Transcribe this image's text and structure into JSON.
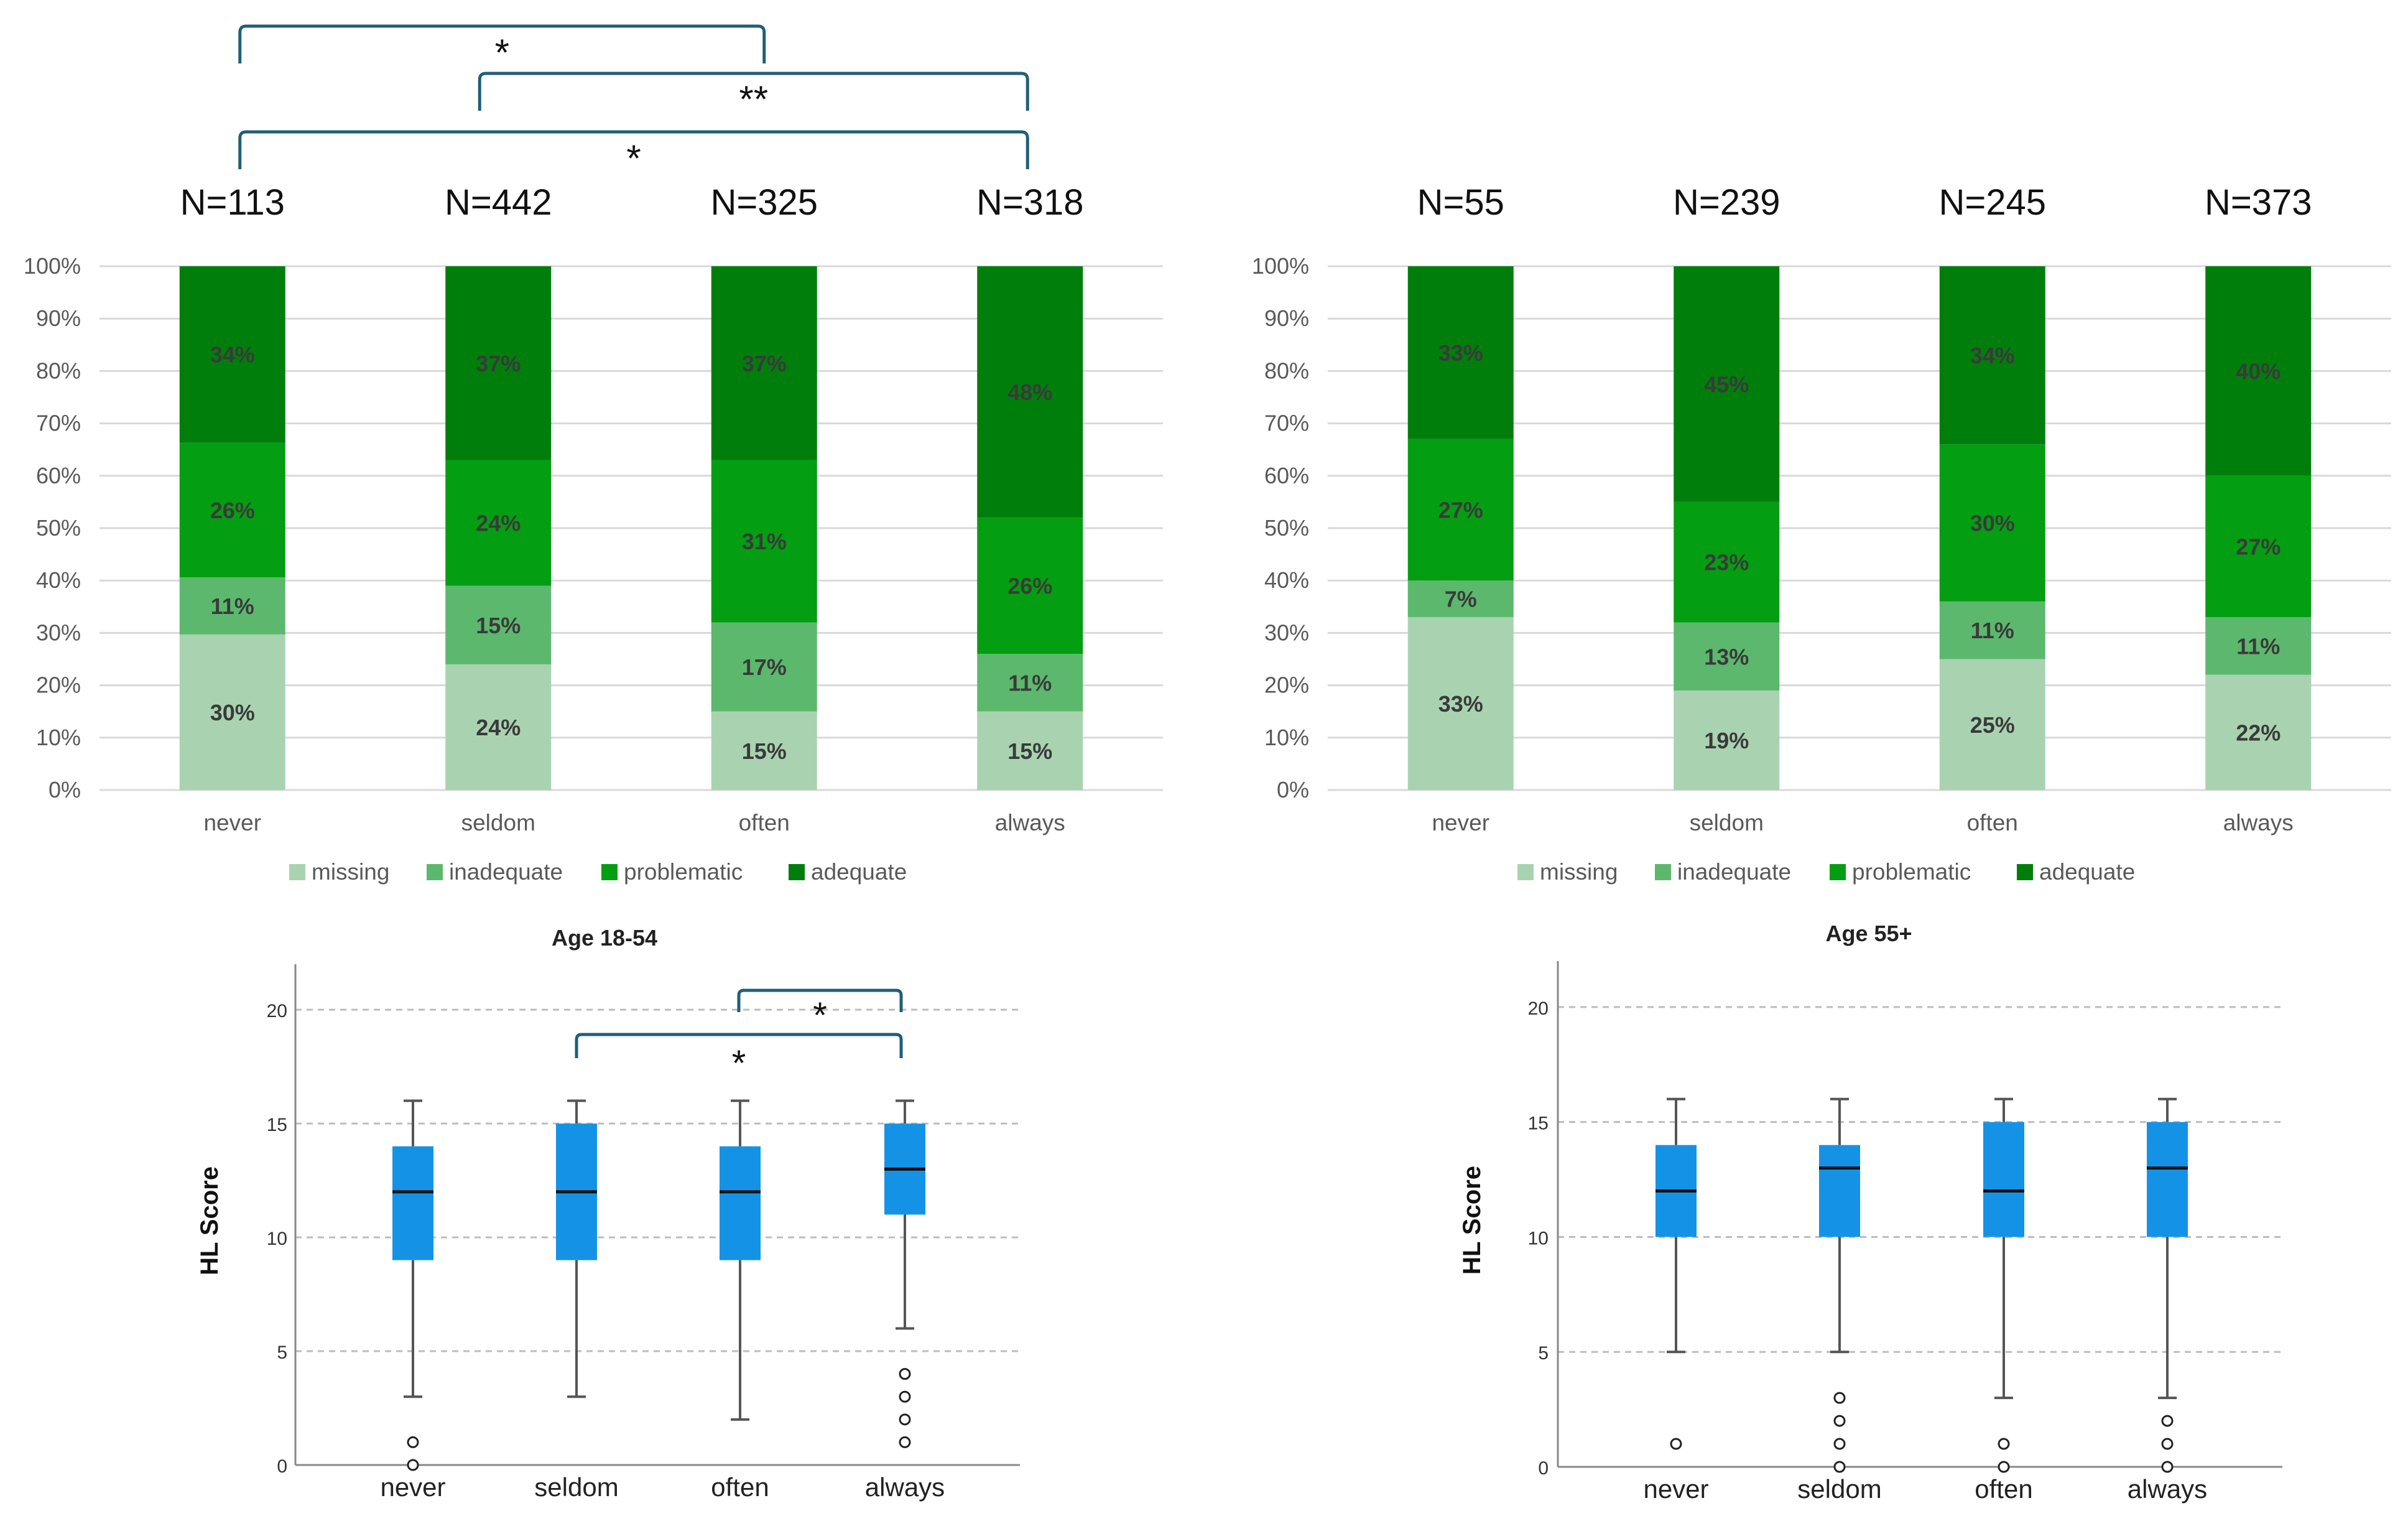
{
  "colors": {
    "missing": "#a9d3b0",
    "inadequate": "#5cb86d",
    "problematic": "#039e11",
    "adequate": "#007e0c",
    "box_fill": "#1493e6",
    "bracket": "#1f5f7a",
    "grid": "#d9d9d9",
    "tick_text": "#595959",
    "label_text": "#3a3a3a"
  },
  "chart_data": [
    {
      "id": "stacked-left",
      "type": "bar",
      "stacked": true,
      "percent_axis": true,
      "categories": [
        "never",
        "seldom",
        "often",
        "always"
      ],
      "n_labels": [
        "N=113",
        "N=442",
        "N=325",
        "N=318"
      ],
      "yticks": [
        "0%",
        "10%",
        "20%",
        "30%",
        "40%",
        "50%",
        "60%",
        "70%",
        "80%",
        "90%",
        "100%"
      ],
      "ylim": [
        0,
        100
      ],
      "series": [
        {
          "name": "missing",
          "values": [
            30,
            24,
            15,
            15
          ],
          "labels": [
            "30%",
            "24%",
            "15%",
            "15%"
          ]
        },
        {
          "name": "inadequate",
          "values": [
            11,
            15,
            17,
            11
          ],
          "labels": [
            "11%",
            "15%",
            "17%",
            "11%"
          ]
        },
        {
          "name": "problematic",
          "values": [
            26,
            24,
            31,
            26
          ],
          "labels": [
            "26%",
            "24%",
            "31%",
            "26%"
          ]
        },
        {
          "name": "adequate",
          "values": [
            34,
            37,
            37,
            48
          ],
          "labels": [
            "34%",
            "37%",
            "37%",
            "48%"
          ]
        }
      ],
      "legend": [
        "missing",
        "inadequate",
        "problematic",
        "adequate"
      ],
      "legend_position": "bottom",
      "significance": [
        {
          "from": "never",
          "to": "often",
          "label": "*"
        },
        {
          "from": "seldom",
          "to": "always",
          "label": "**"
        },
        {
          "from": "never",
          "to": "always",
          "label": "*"
        }
      ]
    },
    {
      "id": "stacked-right",
      "type": "bar",
      "stacked": true,
      "percent_axis": true,
      "categories": [
        "never",
        "seldom",
        "often",
        "always"
      ],
      "n_labels": [
        "N=55",
        "N=239",
        "N=245",
        "N=373"
      ],
      "yticks": [
        "0%",
        "10%",
        "20%",
        "30%",
        "40%",
        "50%",
        "60%",
        "70%",
        "80%",
        "90%",
        "100%"
      ],
      "ylim": [
        0,
        100
      ],
      "series": [
        {
          "name": "missing",
          "values": [
            33,
            19,
            25,
            22
          ],
          "labels": [
            "33%",
            "19%",
            "25%",
            "22%"
          ]
        },
        {
          "name": "inadequate",
          "values": [
            7,
            13,
            11,
            11
          ],
          "labels": [
            "7%",
            "13%",
            "11%",
            "11%"
          ]
        },
        {
          "name": "problematic",
          "values": [
            27,
            23,
            30,
            27
          ],
          "labels": [
            "27%",
            "23%",
            "30%",
            "27%"
          ]
        },
        {
          "name": "adequate",
          "values": [
            33,
            45,
            34,
            40
          ],
          "labels": [
            "33%",
            "45%",
            "34%",
            "40%"
          ]
        }
      ],
      "legend": [
        "missing",
        "inadequate",
        "problematic",
        "adequate"
      ],
      "legend_position": "bottom",
      "significance": []
    },
    {
      "id": "box-left",
      "type": "box",
      "title": "Age 18-54",
      "ylabel": "HL Score",
      "categories": [
        "never",
        "seldom",
        "often",
        "always"
      ],
      "ylim": [
        0,
        22
      ],
      "yticks": [
        0,
        5,
        10,
        15,
        20
      ],
      "boxes": [
        {
          "min": 3,
          "q1": 9,
          "median": 12,
          "q3": 14,
          "max": 16,
          "outliers": [
            1,
            0
          ]
        },
        {
          "min": 3,
          "q1": 9,
          "median": 12,
          "q3": 15,
          "max": 16,
          "outliers": []
        },
        {
          "min": 2,
          "q1": 9,
          "median": 12,
          "q3": 14,
          "max": 16,
          "outliers": []
        },
        {
          "min": 6,
          "q1": 11,
          "median": 13,
          "q3": 15,
          "max": 16,
          "outliers": [
            4,
            3,
            2,
            1
          ]
        }
      ],
      "significance": [
        {
          "from": "often",
          "to": "always",
          "label": "*"
        },
        {
          "from": "seldom",
          "to": "always",
          "label": "*"
        }
      ]
    },
    {
      "id": "box-right",
      "type": "box",
      "title": "Age 55+",
      "ylabel": "HL Score",
      "categories": [
        "never",
        "seldom",
        "often",
        "always"
      ],
      "ylim": [
        0,
        22
      ],
      "yticks": [
        0,
        5,
        10,
        15,
        20
      ],
      "boxes": [
        {
          "min": 5,
          "q1": 10,
          "median": 12,
          "q3": 14,
          "max": 16,
          "outliers": [
            1
          ]
        },
        {
          "min": 5,
          "q1": 10,
          "median": 13,
          "q3": 14,
          "max": 16,
          "outliers": [
            3,
            2,
            1,
            0
          ]
        },
        {
          "min": 3,
          "q1": 10,
          "median": 12,
          "q3": 15,
          "max": 16,
          "outliers": [
            1,
            0
          ]
        },
        {
          "min": 3,
          "q1": 10,
          "median": 13,
          "q3": 15,
          "max": 16,
          "outliers": [
            2,
            1,
            0
          ]
        }
      ],
      "significance": []
    }
  ]
}
